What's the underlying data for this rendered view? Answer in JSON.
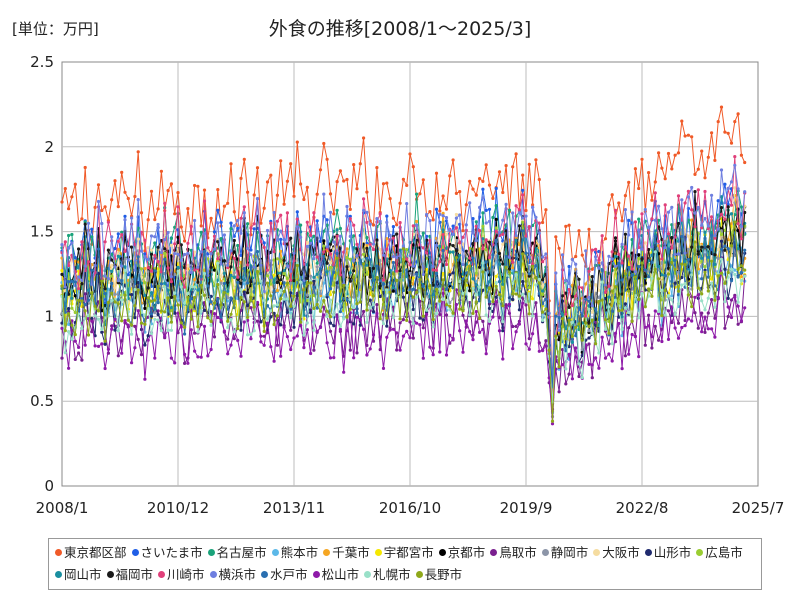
{
  "unit_label": "[単位：万円]",
  "chart_data": {
    "type": "line",
    "title": "外食の推移[2008/1～2025/3]",
    "xlabel": "",
    "ylabel": "",
    "ylim": [
      0,
      2.5
    ],
    "yticks": [
      "0",
      "0.5",
      "1",
      "1.5",
      "2",
      "2.5"
    ],
    "x_start": "2008/1",
    "x_end": "2025/7",
    "data_end": "2025/3",
    "xticks": [
      "2008/1",
      "2010/12",
      "2013/11",
      "2016/10",
      "2019/9",
      "2022/8",
      "2025/7"
    ],
    "grid": true,
    "legend_position": "bottom",
    "series": [
      {
        "name": "東京都区部",
        "color": "#f05a28",
        "base": 1.62,
        "amp": 0.22
      },
      {
        "name": "さいたま市",
        "color": "#1f5ee6",
        "base": 1.3,
        "amp": 0.22
      },
      {
        "name": "名古屋市",
        "color": "#1aa37a",
        "base": 1.3,
        "amp": 0.2
      },
      {
        "name": "熊本市",
        "color": "#5cb8e8",
        "base": 1.08,
        "amp": 0.18
      },
      {
        "name": "千葉市",
        "color": "#f5a623",
        "base": 1.2,
        "amp": 0.18
      },
      {
        "name": "宇都宮市",
        "color": "#f5e800",
        "base": 1.12,
        "amp": 0.16
      },
      {
        "name": "京都市",
        "color": "#000000",
        "base": 1.18,
        "amp": 0.18
      },
      {
        "name": "鳥取市",
        "color": "#7a1f8f",
        "base": 0.88,
        "amp": 0.16
      },
      {
        "name": "静岡市",
        "color": "#8c95a8",
        "base": 1.12,
        "amp": 0.16
      },
      {
        "name": "大阪市",
        "color": "#f5dca0",
        "base": 1.22,
        "amp": 0.18
      },
      {
        "name": "山形市",
        "color": "#1f2a6e",
        "base": 1.02,
        "amp": 0.16
      },
      {
        "name": "広島市",
        "color": "#9acd32",
        "base": 1.16,
        "amp": 0.16
      },
      {
        "name": "岡山市",
        "color": "#1a8fa0",
        "base": 1.18,
        "amp": 0.17
      },
      {
        "name": "福岡市",
        "color": "#1a1a1a",
        "base": 1.24,
        "amp": 0.18
      },
      {
        "name": "川崎市",
        "color": "#e0407a",
        "base": 1.34,
        "amp": 0.2
      },
      {
        "name": "横浜市",
        "color": "#6f7fe0",
        "base": 1.36,
        "amp": 0.2
      },
      {
        "name": "水戸市",
        "color": "#2a6fb0",
        "base": 1.1,
        "amp": 0.17
      },
      {
        "name": "松山市",
        "color": "#8e1aa8",
        "base": 0.84,
        "amp": 0.15
      },
      {
        "name": "札幌市",
        "color": "#99e0c8",
        "base": 1.0,
        "amp": 0.16
      },
      {
        "name": "長野市",
        "color": "#8fa81a",
        "base": 1.04,
        "amp": 0.16
      }
    ]
  }
}
